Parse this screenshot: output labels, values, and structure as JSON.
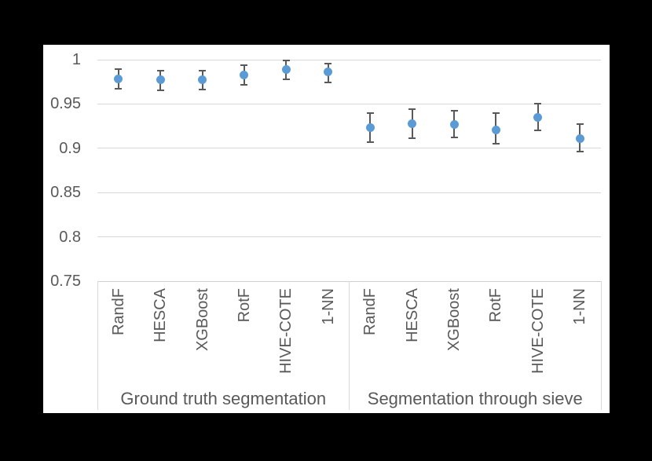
{
  "chart_data": {
    "type": "scatter",
    "title": "",
    "xlabel": "",
    "ylabel": "",
    "ylim": [
      0.75,
      1.0
    ],
    "grid": true,
    "legend": false,
    "yticks": [
      {
        "label": "1",
        "value": 1.0
      },
      {
        "label": "0.95",
        "value": 0.95
      },
      {
        "label": "0.9",
        "value": 0.9
      },
      {
        "label": "0.85",
        "value": 0.85
      },
      {
        "label": "0.8",
        "value": 0.8
      },
      {
        "label": "0.75",
        "value": 0.75
      }
    ],
    "groups": [
      {
        "label": "Ground truth segmentation",
        "categories": [
          "RandF",
          "HESCA",
          "XGBoost",
          "RotF",
          "HIVE-COTE",
          "1-NN"
        ],
        "points": [
          {
            "category": "RandF",
            "value": 0.978,
            "lo": 0.967,
            "hi": 0.989
          },
          {
            "category": "HESCA",
            "value": 0.977,
            "lo": 0.965,
            "hi": 0.988
          },
          {
            "category": "XGBoost",
            "value": 0.977,
            "lo": 0.966,
            "hi": 0.988
          },
          {
            "category": "RotF",
            "value": 0.983,
            "lo": 0.972,
            "hi": 0.994
          },
          {
            "category": "HIVE-COTE",
            "value": 0.989,
            "lo": 0.978,
            "hi": 0.999
          },
          {
            "category": "1-NN",
            "value": 0.986,
            "lo": 0.974,
            "hi": 0.996
          }
        ]
      },
      {
        "label": "Segmentation through sieve",
        "categories": [
          "RandF",
          "HESCA",
          "XGBoost",
          "RotF",
          "HIVE-COTE",
          "1-NN"
        ],
        "points": [
          {
            "category": "RandF",
            "value": 0.923,
            "lo": 0.907,
            "hi": 0.94
          },
          {
            "category": "HESCA",
            "value": 0.928,
            "lo": 0.911,
            "hi": 0.944
          },
          {
            "category": "XGBoost",
            "value": 0.927,
            "lo": 0.912,
            "hi": 0.942
          },
          {
            "category": "RotF",
            "value": 0.921,
            "lo": 0.905,
            "hi": 0.94
          },
          {
            "category": "HIVE-COTE",
            "value": 0.935,
            "lo": 0.92,
            "hi": 0.95
          },
          {
            "category": "1-NN",
            "value": 0.911,
            "lo": 0.896,
            "hi": 0.927
          }
        ]
      }
    ],
    "colors": {
      "page_bg": "#000000",
      "chart_bg": "#ffffff",
      "marker": "#5B9BD5",
      "error_bar": "#595959",
      "gridline": "#D9D9D9",
      "axis_line": "#D0D0D0",
      "text": "#595959"
    }
  }
}
